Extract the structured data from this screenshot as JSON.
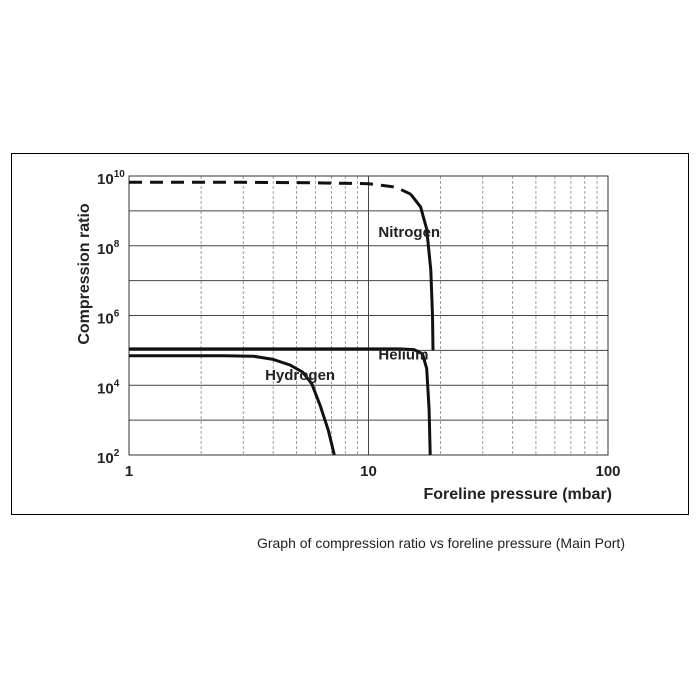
{
  "caption": "Graph of compression ratio vs foreline pressure (Main Port)",
  "chart_data": {
    "type": "line",
    "title": "",
    "xlabel": "Foreline pressure (mbar)",
    "ylabel": "Compression ratio",
    "xscale": "log",
    "yscale": "log",
    "xlim": [
      1,
      100
    ],
    "ylim": [
      100,
      10000000000
    ],
    "grid": true,
    "legend": "none",
    "x_ticks": [
      {
        "value": 1,
        "label": "1"
      },
      {
        "value": 10,
        "label": "10"
      },
      {
        "value": 100,
        "label": "100"
      }
    ],
    "y_ticks": [
      {
        "value": 100,
        "base": "10",
        "exp": "2"
      },
      {
        "value": 10000,
        "base": "10",
        "exp": "4"
      },
      {
        "value": 1000000,
        "base": "10",
        "exp": "6"
      },
      {
        "value": 100000000,
        "base": "10",
        "exp": "8"
      },
      {
        "value": 10000000000,
        "base": "10",
        "exp": "10"
      }
    ],
    "series": [
      {
        "name": "Nitrogen",
        "label_at": [
          11,
          180000000
        ],
        "style": "dashed-then-solid",
        "color": "#111111",
        "points": [
          [
            1,
            6600000000
          ],
          [
            3,
            6600000000
          ],
          [
            6,
            6400000000
          ],
          [
            10,
            6000000000
          ],
          [
            13,
            4800000000
          ],
          [
            15,
            3000000000
          ],
          [
            16.5,
            1300000000
          ],
          [
            17.5,
            300000000
          ],
          [
            18.2,
            20000000
          ],
          [
            18.5,
            1000000
          ],
          [
            18.6,
            100000
          ]
        ],
        "dashed_until_x": 15
      },
      {
        "name": "Helium",
        "label_at": [
          11,
          55000
        ],
        "style": "solid",
        "color": "#111111",
        "points": [
          [
            1,
            110000
          ],
          [
            5,
            110000
          ],
          [
            10,
            110000
          ],
          [
            13.5,
            110000
          ],
          [
            15.5,
            105000
          ],
          [
            16.8,
            80000
          ],
          [
            17.5,
            30000
          ],
          [
            17.9,
            2000
          ],
          [
            18.1,
            100
          ]
        ]
      },
      {
        "name": "Hydrogen",
        "label_at": [
          3.7,
          14000
        ],
        "style": "solid",
        "color": "#111111",
        "points": [
          [
            1,
            70000
          ],
          [
            2.5,
            70000
          ],
          [
            3.3,
            68000
          ],
          [
            4,
            55000
          ],
          [
            4.7,
            38000
          ],
          [
            5.3,
            24000
          ],
          [
            5.8,
            11000
          ],
          [
            6.3,
            2500
          ],
          [
            6.8,
            500
          ],
          [
            7.2,
            100
          ]
        ]
      }
    ]
  }
}
